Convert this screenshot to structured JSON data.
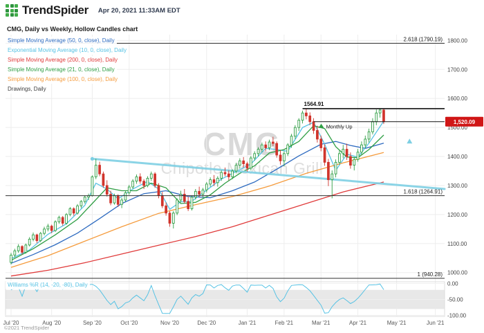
{
  "header": {
    "logo_text": "TrendSpider",
    "timestamp": "Apr 20, 2021 11:33AM EDT"
  },
  "chart_title": "CMG, Daily vs Weekly, Hollow Candles chart",
  "footer": {
    "copyright": "©2021 TrendSpider"
  },
  "watermark": {
    "symbol": "CMG",
    "name": "Chipotle Mexican Grill"
  },
  "legend": [
    {
      "label": "Simple Moving Average (50, 0, close), Daily",
      "color": "#2e6bc0"
    },
    {
      "label": "Exponential Moving Average (10, 0, close), Daily",
      "color": "#56c2e4"
    },
    {
      "label": "Simple Moving Average (200, 0, close), Daily",
      "color": "#e03a3a"
    },
    {
      "label": "Simple Moving Average (21, 0, close), Daily",
      "color": "#2f9e44"
    },
    {
      "label": "Simple Moving Average (100, 0, close), Daily",
      "color": "#f59b3c"
    },
    {
      "label": "Drawings, Daily",
      "color": "#3c3c3c"
    }
  ],
  "wr_legend": {
    "label": "Williams %R (14, -20, -80), Daily",
    "color": "#56c2e4"
  },
  "colors": {
    "up": "#2f9e44",
    "down": "#d0342c",
    "grid": "#ededed",
    "fib": "#2f2f2f"
  },
  "chart_data": {
    "type": "candlestick",
    "symbol": "CMG",
    "timeframe": "Daily vs Weekly",
    "x_domain": [
      -1.5,
      117.5
    ],
    "price_axis": {
      "min": 985,
      "max": 1820,
      "ticks": [
        {
          "value": 1800,
          "label": "1800.00"
        },
        {
          "value": 1700,
          "label": "1700.00"
        },
        {
          "value": 1600,
          "label": "1600.00"
        },
        {
          "value": 1500,
          "label": "1500.00"
        },
        {
          "value": 1400,
          "label": "1400.00"
        },
        {
          "value": 1300,
          "label": "1300.00"
        },
        {
          "value": 1200,
          "label": "1200.00"
        },
        {
          "value": 1100,
          "label": "1100.00"
        },
        {
          "value": 1000,
          "label": "1000.00"
        }
      ]
    },
    "x_ticks": [
      {
        "label": "Jul '20",
        "idx": 0
      },
      {
        "label": "Aug '20",
        "idx": 11
      },
      {
        "label": "Sep '20",
        "idx": 22
      },
      {
        "label": "Oct '20",
        "idx": 32
      },
      {
        "label": "Nov '20",
        "idx": 43
      },
      {
        "label": "Dec '20",
        "idx": 53
      },
      {
        "label": "Jan '21",
        "idx": 64
      },
      {
        "label": "Feb '21",
        "idx": 74
      },
      {
        "label": "Mar '21",
        "idx": 84
      },
      {
        "label": "Apr '21",
        "idx": 94
      },
      {
        "label": "May '21",
        "idx": 104.5
      },
      {
        "label": "Jun '21",
        "idx": 115
      }
    ],
    "candles": [
      [
        1035,
        1068,
        1028,
        1060
      ],
      [
        1060,
        1082,
        1052,
        1075
      ],
      [
        1075,
        1098,
        1068,
        1090
      ],
      [
        1090,
        1094,
        1062,
        1070
      ],
      [
        1070,
        1100,
        1065,
        1095
      ],
      [
        1095,
        1122,
        1090,
        1115
      ],
      [
        1115,
        1138,
        1108,
        1130
      ],
      [
        1130,
        1134,
        1102,
        1110
      ],
      [
        1110,
        1140,
        1105,
        1135
      ],
      [
        1135,
        1158,
        1128,
        1150
      ],
      [
        1150,
        1168,
        1142,
        1160
      ],
      [
        1160,
        1165,
        1136,
        1145
      ],
      [
        1145,
        1180,
        1140,
        1175
      ],
      [
        1175,
        1196,
        1168,
        1190
      ],
      [
        1190,
        1195,
        1162,
        1170
      ],
      [
        1170,
        1205,
        1165,
        1200
      ],
      [
        1200,
        1226,
        1194,
        1220
      ],
      [
        1220,
        1225,
        1196,
        1205
      ],
      [
        1205,
        1236,
        1200,
        1230
      ],
      [
        1230,
        1250,
        1222,
        1245
      ],
      [
        1245,
        1266,
        1238,
        1260
      ],
      [
        1260,
        1272,
        1250,
        1265
      ],
      [
        1265,
        1335,
        1262,
        1330
      ],
      [
        1330,
        1392,
        1322,
        1370
      ],
      [
        1370,
        1382,
        1332,
        1340
      ],
      [
        1340,
        1348,
        1292,
        1300
      ],
      [
        1300,
        1318,
        1262,
        1270
      ],
      [
        1270,
        1282,
        1232,
        1240
      ],
      [
        1240,
        1272,
        1234,
        1265
      ],
      [
        1265,
        1270,
        1226,
        1235
      ],
      [
        1235,
        1258,
        1222,
        1250
      ],
      [
        1250,
        1282,
        1244,
        1275
      ],
      [
        1275,
        1302,
        1268,
        1295
      ],
      [
        1295,
        1322,
        1288,
        1315
      ],
      [
        1315,
        1338,
        1306,
        1330
      ],
      [
        1330,
        1342,
        1306,
        1315
      ],
      [
        1315,
        1322,
        1288,
        1300
      ],
      [
        1300,
        1332,
        1294,
        1325
      ],
      [
        1325,
        1348,
        1316,
        1340
      ],
      [
        1340,
        1346,
        1292,
        1300
      ],
      [
        1300,
        1308,
        1256,
        1265
      ],
      [
        1265,
        1278,
        1222,
        1230
      ],
      [
        1230,
        1242,
        1196,
        1205
      ],
      [
        1205,
        1212,
        1158,
        1170
      ],
      [
        1170,
        1212,
        1152,
        1205
      ],
      [
        1205,
        1256,
        1198,
        1250
      ],
      [
        1250,
        1282,
        1242,
        1270
      ],
      [
        1270,
        1288,
        1238,
        1245
      ],
      [
        1245,
        1262,
        1212,
        1220
      ],
      [
        1220,
        1266,
        1214,
        1260
      ],
      [
        1260,
        1288,
        1252,
        1280
      ],
      [
        1280,
        1296,
        1260,
        1270
      ],
      [
        1270,
        1292,
        1258,
        1285
      ],
      [
        1285,
        1312,
        1276,
        1305
      ],
      [
        1305,
        1328,
        1296,
        1320
      ],
      [
        1320,
        1336,
        1298,
        1310
      ],
      [
        1310,
        1332,
        1296,
        1325
      ],
      [
        1325,
        1352,
        1316,
        1345
      ],
      [
        1345,
        1362,
        1332,
        1340
      ],
      [
        1340,
        1352,
        1318,
        1330
      ],
      [
        1330,
        1356,
        1322,
        1350
      ],
      [
        1350,
        1378,
        1342,
        1370
      ],
      [
        1370,
        1394,
        1358,
        1385
      ],
      [
        1385,
        1398,
        1362,
        1375
      ],
      [
        1375,
        1382,
        1348,
        1360
      ],
      [
        1360,
        1402,
        1352,
        1395
      ],
      [
        1395,
        1418,
        1386,
        1410
      ],
      [
        1410,
        1432,
        1400,
        1425
      ],
      [
        1425,
        1448,
        1415,
        1440
      ],
      [
        1440,
        1452,
        1418,
        1430
      ],
      [
        1430,
        1458,
        1422,
        1450
      ],
      [
        1450,
        1468,
        1436,
        1445
      ],
      [
        1445,
        1452,
        1396,
        1405
      ],
      [
        1405,
        1422,
        1372,
        1385
      ],
      [
        1385,
        1418,
        1366,
        1410
      ],
      [
        1410,
        1446,
        1402,
        1440
      ],
      [
        1440,
        1478,
        1430,
        1470
      ],
      [
        1470,
        1508,
        1460,
        1500
      ],
      [
        1500,
        1532,
        1488,
        1525
      ],
      [
        1525,
        1558,
        1514,
        1550
      ],
      [
        1550,
        1565,
        1528,
        1540
      ],
      [
        1540,
        1552,
        1508,
        1520
      ],
      [
        1520,
        1532,
        1478,
        1490
      ],
      [
        1490,
        1506,
        1448,
        1460
      ],
      [
        1460,
        1472,
        1418,
        1430
      ],
      [
        1430,
        1442,
        1368,
        1380
      ],
      [
        1380,
        1392,
        1298,
        1320
      ],
      [
        1320,
        1352,
        1256,
        1340
      ],
      [
        1340,
        1390,
        1328,
        1380
      ],
      [
        1380,
        1422,
        1372,
        1410
      ],
      [
        1410,
        1440,
        1394,
        1425
      ],
      [
        1425,
        1444,
        1388,
        1400
      ],
      [
        1400,
        1414,
        1358,
        1370
      ],
      [
        1370,
        1398,
        1352,
        1390
      ],
      [
        1390,
        1426,
        1382,
        1415
      ],
      [
        1415,
        1452,
        1406,
        1440
      ],
      [
        1440,
        1472,
        1428,
        1460
      ],
      [
        1460,
        1496,
        1448,
        1485
      ],
      [
        1485,
        1532,
        1476,
        1520
      ],
      [
        1520,
        1562,
        1508,
        1550
      ],
      [
        1550,
        1565,
        1534,
        1560
      ],
      [
        1560,
        1566,
        1512,
        1520.09
      ]
    ],
    "last_price": {
      "label": "1,520.09",
      "value": 1520.09,
      "color": "#d01616"
    },
    "fib_levels": [
      {
        "label": "2.618 (1790.19)",
        "value": 1790.19
      },
      {
        "label": "1.618 (1264.91)",
        "value": 1264.91
      },
      {
        "label": "1 (940.28)",
        "value": 940.28
      }
    ],
    "annotations": [
      {
        "label": "1564.91",
        "value": 1564.91,
        "from_idx": 79,
        "style": "resistance"
      },
      {
        "label": "Monthly Up",
        "value": 1520.09,
        "from_idx": 82,
        "style": "level",
        "icon": "up-arrow",
        "icon_color": "#2f9e44"
      }
    ],
    "ma_lines": [
      {
        "name": "sma50",
        "color": "#2e6bc0",
        "points": [
          [
            0,
            1032
          ],
          [
            6,
            1062
          ],
          [
            12,
            1096
          ],
          [
            18,
            1136
          ],
          [
            24,
            1186
          ],
          [
            30,
            1238
          ],
          [
            36,
            1272
          ],
          [
            42,
            1282
          ],
          [
            48,
            1262
          ],
          [
            54,
            1258
          ],
          [
            60,
            1282
          ],
          [
            66,
            1312
          ],
          [
            72,
            1356
          ],
          [
            78,
            1402
          ],
          [
            84,
            1442
          ],
          [
            88,
            1452
          ],
          [
            92,
            1438
          ],
          [
            96,
            1428
          ],
          [
            101,
            1446
          ]
        ]
      },
      {
        "name": "ema10",
        "color": "#56c2e4",
        "points": [
          [
            0,
            1048
          ],
          [
            5,
            1078
          ],
          [
            10,
            1132
          ],
          [
            15,
            1168
          ],
          [
            20,
            1232
          ],
          [
            23,
            1308
          ],
          [
            26,
            1288
          ],
          [
            29,
            1254
          ],
          [
            33,
            1288
          ],
          [
            37,
            1314
          ],
          [
            40,
            1288
          ],
          [
            43,
            1218
          ],
          [
            46,
            1244
          ],
          [
            49,
            1246
          ],
          [
            53,
            1284
          ],
          [
            57,
            1322
          ],
          [
            61,
            1348
          ],
          [
            65,
            1374
          ],
          [
            69,
            1428
          ],
          [
            72,
            1424
          ],
          [
            75,
            1418
          ],
          [
            79,
            1500
          ],
          [
            82,
            1518
          ],
          [
            85,
            1442
          ],
          [
            88,
            1352
          ],
          [
            91,
            1408
          ],
          [
            94,
            1398
          ],
          [
            97,
            1446
          ],
          [
            101,
            1522
          ]
        ]
      },
      {
        "name": "sma200",
        "color": "#e03a3a",
        "points": [
          [
            0,
            988
          ],
          [
            10,
            1008
          ],
          [
            20,
            1034
          ],
          [
            30,
            1064
          ],
          [
            40,
            1094
          ],
          [
            50,
            1124
          ],
          [
            60,
            1158
          ],
          [
            70,
            1198
          ],
          [
            80,
            1238
          ],
          [
            90,
            1278
          ],
          [
            101,
            1312
          ]
        ]
      },
      {
        "name": "sma21",
        "color": "#2f9e44",
        "points": [
          [
            0,
            1042
          ],
          [
            6,
            1082
          ],
          [
            12,
            1130
          ],
          [
            18,
            1184
          ],
          [
            22,
            1238
          ],
          [
            26,
            1292
          ],
          [
            30,
            1282
          ],
          [
            34,
            1282
          ],
          [
            38,
            1308
          ],
          [
            42,
            1292
          ],
          [
            46,
            1238
          ],
          [
            50,
            1242
          ],
          [
            54,
            1268
          ],
          [
            58,
            1308
          ],
          [
            62,
            1342
          ],
          [
            66,
            1368
          ],
          [
            70,
            1412
          ],
          [
            74,
            1424
          ],
          [
            78,
            1452
          ],
          [
            82,
            1506
          ],
          [
            85,
            1496
          ],
          [
            88,
            1434
          ],
          [
            91,
            1398
          ],
          [
            94,
            1396
          ],
          [
            97,
            1424
          ],
          [
            101,
            1474
          ]
        ]
      },
      {
        "name": "sma100",
        "color": "#f59b3c",
        "points": [
          [
            0,
            1018
          ],
          [
            10,
            1058
          ],
          [
            20,
            1108
          ],
          [
            30,
            1158
          ],
          [
            40,
            1204
          ],
          [
            50,
            1234
          ],
          [
            60,
            1262
          ],
          [
            70,
            1298
          ],
          [
            80,
            1342
          ],
          [
            90,
            1378
          ],
          [
            101,
            1414
          ]
        ]
      }
    ],
    "trendline": {
      "color": "#7ecfe3",
      "width": 3,
      "points": [
        [
          22,
          1392
        ],
        [
          117.5,
          1288
        ]
      ],
      "start_dot": true,
      "marker": {
        "idx": 108,
        "value": 1452
      }
    },
    "wr_panel": {
      "period": 14,
      "upper": -20,
      "lower": -80,
      "color": "#56c2e4",
      "ticks": [
        {
          "value": 0,
          "label": "0.00"
        },
        {
          "value": -50,
          "label": "-50.00"
        },
        {
          "value": -100,
          "label": "-100.00"
        }
      ]
    }
  }
}
